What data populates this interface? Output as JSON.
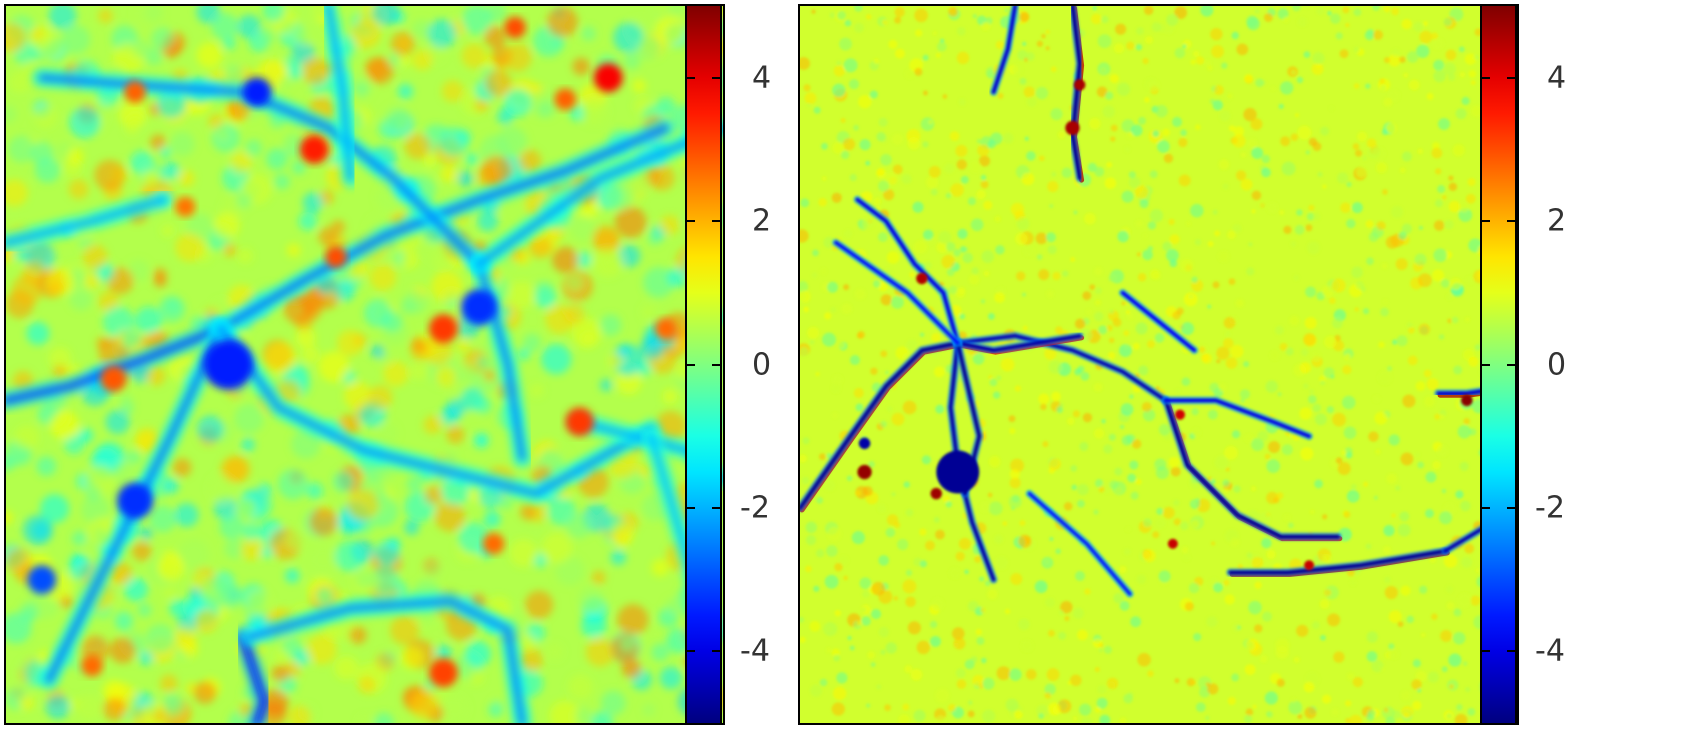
{
  "chart_data": [
    {
      "type": "heatmap",
      "title": "",
      "xlabel": "",
      "ylabel": "",
      "colorbar": {
        "range": [
          -5,
          5
        ],
        "ticks": [
          4,
          2,
          0,
          -2,
          -4
        ],
        "tick_labels": [
          "4",
          "2",
          "0",
          "-2",
          "-4"
        ],
        "colormap": "jet"
      },
      "texture": "smooth",
      "background_level": 0.5,
      "filaments": [
        {
          "id": "L1",
          "path": [
            [
              0.0,
              0.55
            ],
            [
              0.09,
              0.53
            ],
            [
              0.2,
              0.49
            ],
            [
              0.3,
              0.45
            ]
          ],
          "value": -3.0
        },
        {
          "id": "L2",
          "path": [
            [
              0.3,
              0.45
            ],
            [
              0.42,
              0.38
            ],
            [
              0.53,
              0.32
            ],
            [
              0.66,
              0.27
            ],
            [
              0.78,
              0.23
            ],
            [
              0.92,
              0.17
            ]
          ],
          "value": -2.6
        },
        {
          "id": "L3",
          "path": [
            [
              0.3,
              0.45
            ],
            [
              0.23,
              0.6
            ],
            [
              0.18,
              0.7
            ],
            [
              0.12,
              0.82
            ],
            [
              0.06,
              0.94
            ]
          ],
          "value": -2.5
        },
        {
          "id": "L4",
          "path": [
            [
              0.3,
              0.45
            ],
            [
              0.38,
              0.56
            ],
            [
              0.5,
              0.62
            ],
            [
              0.62,
              0.65
            ],
            [
              0.74,
              0.68
            ],
            [
              0.9,
              0.59
            ]
          ],
          "value": -2.3
        },
        {
          "id": "L5",
          "path": [
            [
              0.33,
              0.88
            ],
            [
              0.36,
              0.97
            ],
            [
              0.35,
              1.0
            ]
          ],
          "value": -3.6
        },
        {
          "id": "L6",
          "path": [
            [
              0.34,
              0.88
            ],
            [
              0.48,
              0.84
            ],
            [
              0.62,
              0.83
            ],
            [
              0.7,
              0.87
            ],
            [
              0.72,
              1.0
            ]
          ],
          "value": -2.4
        },
        {
          "id": "L7",
          "path": [
            [
              0.05,
              0.1
            ],
            [
              0.18,
              0.11
            ],
            [
              0.33,
              0.12
            ],
            [
              0.45,
              0.17
            ],
            [
              0.54,
              0.24
            ],
            [
              0.66,
              0.36
            ]
          ],
          "value": -2.5
        },
        {
          "id": "L8",
          "path": [
            [
              0.66,
              0.36
            ],
            [
              0.7,
              0.5
            ],
            [
              0.72,
              0.63
            ]
          ],
          "value": -2.4
        },
        {
          "id": "L9",
          "path": [
            [
              0.66,
              0.36
            ],
            [
              0.83,
              0.24
            ],
            [
              1.0,
              0.17
            ]
          ],
          "value": -2.2
        },
        {
          "id": "L10",
          "path": [
            [
              0.45,
              0.0
            ],
            [
              0.47,
              0.12
            ],
            [
              0.48,
              0.24
            ]
          ],
          "value": -2.0
        },
        {
          "id": "L11",
          "path": [
            [
              0.8,
              0.58
            ],
            [
              0.95,
              0.62
            ],
            [
              1.0,
              0.66
            ]
          ],
          "value": -2.0
        },
        {
          "id": "L12",
          "path": [
            [
              0.0,
              0.33
            ],
            [
              0.12,
              0.3
            ],
            [
              0.22,
              0.27
            ]
          ],
          "value": -2.0
        },
        {
          "id": "L13",
          "path": [
            [
              0.9,
              0.6
            ],
            [
              0.96,
              0.8
            ],
            [
              0.98,
              1.0
            ]
          ],
          "value": -1.8
        }
      ],
      "blobs": [
        {
          "xy": [
            0.43,
            0.2
          ],
          "r": 0.02,
          "value": 3.5
        },
        {
          "xy": [
            0.84,
            0.1
          ],
          "r": 0.02,
          "value": 3.8
        },
        {
          "xy": [
            0.61,
            0.45
          ],
          "r": 0.02,
          "value": 3.2
        },
        {
          "xy": [
            0.8,
            0.58
          ],
          "r": 0.02,
          "value": 3.2
        },
        {
          "xy": [
            0.61,
            0.93
          ],
          "r": 0.02,
          "value": 3.1
        },
        {
          "xy": [
            0.15,
            0.52
          ],
          "r": 0.018,
          "value": 2.9
        },
        {
          "xy": [
            0.46,
            0.35
          ],
          "r": 0.015,
          "value": 3.0
        },
        {
          "xy": [
            0.18,
            0.12
          ],
          "r": 0.015,
          "value": 2.8
        },
        {
          "xy": [
            0.71,
            0.03
          ],
          "r": 0.015,
          "value": 3.0
        },
        {
          "xy": [
            0.78,
            0.13
          ],
          "r": 0.015,
          "value": 2.8
        },
        {
          "xy": [
            0.12,
            0.92
          ],
          "r": 0.015,
          "value": 2.7
        },
        {
          "xy": [
            0.92,
            0.45
          ],
          "r": 0.015,
          "value": 2.7
        },
        {
          "xy": [
            0.25,
            0.28
          ],
          "r": 0.014,
          "value": 2.6
        },
        {
          "xy": [
            0.68,
            0.75
          ],
          "r": 0.015,
          "value": 2.7
        }
      ],
      "minima": [
        {
          "xy": [
            0.31,
            0.5
          ],
          "r": 0.035,
          "value": -3.5
        },
        {
          "xy": [
            0.35,
            0.12
          ],
          "r": 0.02,
          "value": -3.5
        },
        {
          "xy": [
            0.66,
            0.42
          ],
          "r": 0.025,
          "value": -3.3
        },
        {
          "xy": [
            0.18,
            0.69
          ],
          "r": 0.025,
          "value": -3.3
        },
        {
          "xy": [
            0.05,
            0.8
          ],
          "r": 0.02,
          "value": -3.0
        }
      ]
    },
    {
      "type": "heatmap",
      "title": "",
      "xlabel": "",
      "ylabel": "",
      "colorbar": {
        "range": [
          -5,
          5
        ],
        "ticks": [
          4,
          2,
          0,
          -2,
          -4
        ],
        "tick_labels": [
          "4",
          "2",
          "0",
          "-2",
          "-4"
        ],
        "colormap": "jet"
      },
      "texture": "sharp",
      "background_level": 0.8,
      "filaments": [
        {
          "id": "R1",
          "path": [
            [
              0.38,
              0.0
            ],
            [
              0.39,
              0.08
            ],
            [
              0.38,
              0.18
            ],
            [
              0.39,
              0.24
            ]
          ],
          "value": -4.8,
          "positive_edge": 4.5
        },
        {
          "id": "R2",
          "path": [
            [
              0.0,
              0.7
            ],
            [
              0.07,
              0.6
            ],
            [
              0.12,
              0.53
            ],
            [
              0.17,
              0.48
            ],
            [
              0.22,
              0.47
            ]
          ],
          "value": -4.8,
          "positive_edge": 4.2
        },
        {
          "id": "R3",
          "path": [
            [
              0.22,
              0.47
            ],
            [
              0.3,
              0.46
            ],
            [
              0.38,
              0.48
            ],
            [
              0.45,
              0.51
            ],
            [
              0.51,
              0.55
            ]
          ],
          "value": -4.5
        },
        {
          "id": "R4",
          "path": [
            [
              0.22,
              0.47
            ],
            [
              0.27,
              0.48
            ],
            [
              0.33,
              0.47
            ],
            [
              0.39,
              0.46
            ]
          ],
          "value": -4.6,
          "positive_edge": 4.0
        },
        {
          "id": "R5",
          "path": [
            [
              0.22,
              0.47
            ],
            [
              0.2,
              0.4
            ],
            [
              0.16,
              0.36
            ],
            [
              0.12,
              0.3
            ],
            [
              0.08,
              0.27
            ]
          ],
          "value": -4.0
        },
        {
          "id": "R6",
          "path": [
            [
              0.22,
              0.47
            ],
            [
              0.21,
              0.56
            ],
            [
              0.22,
              0.64
            ],
            [
              0.24,
              0.72
            ],
            [
              0.27,
              0.8
            ]
          ],
          "value": -4.6
        },
        {
          "id": "R7",
          "path": [
            [
              0.51,
              0.55
            ],
            [
              0.54,
              0.64
            ],
            [
              0.61,
              0.71
            ],
            [
              0.67,
              0.74
            ],
            [
              0.75,
              0.74
            ]
          ],
          "value": -4.8,
          "positive_edge": 4.0
        },
        {
          "id": "R8",
          "path": [
            [
              0.51,
              0.55
            ],
            [
              0.58,
              0.55
            ],
            [
              0.66,
              0.58
            ],
            [
              0.71,
              0.6
            ]
          ],
          "value": -4.0
        },
        {
          "id": "R9",
          "path": [
            [
              0.6,
              0.79
            ],
            [
              0.68,
              0.79
            ],
            [
              0.78,
              0.78
            ],
            [
              0.9,
              0.76
            ]
          ],
          "value": -4.8,
          "positive_edge": 4.5
        },
        {
          "id": "R10",
          "path": [
            [
              0.89,
              0.54
            ],
            [
              0.93,
              0.54
            ],
            [
              1.0,
              0.53
            ]
          ],
          "value": -4.2,
          "positive_edge": 4.6
        },
        {
          "id": "R11",
          "path": [
            [
              0.9,
              0.76
            ],
            [
              0.95,
              0.73
            ],
            [
              1.0,
              0.7
            ]
          ],
          "value": -4.5
        },
        {
          "id": "R12",
          "path": [
            [
              0.3,
              0.0
            ],
            [
              0.29,
              0.06
            ],
            [
              0.27,
              0.12
            ]
          ],
          "value": -4.2
        },
        {
          "id": "R13",
          "path": [
            [
              0.22,
              0.47
            ],
            [
              0.25,
              0.6
            ],
            [
              0.23,
              0.68
            ]
          ],
          "value": -4.8
        },
        {
          "id": "R14",
          "path": [
            [
              0.05,
              0.33
            ],
            [
              0.15,
              0.4
            ],
            [
              0.22,
              0.47
            ]
          ],
          "value": -3.6
        },
        {
          "id": "R15",
          "path": [
            [
              0.45,
              0.4
            ],
            [
              0.5,
              0.44
            ],
            [
              0.55,
              0.48
            ]
          ],
          "value": -3.8
        },
        {
          "id": "R16",
          "path": [
            [
              0.32,
              0.68
            ],
            [
              0.4,
              0.75
            ],
            [
              0.46,
              0.82
            ]
          ],
          "value": -3.5
        }
      ],
      "blobs": [
        {
          "xy": [
            0.38,
            0.17
          ],
          "r": 0.01,
          "value": 4.6
        },
        {
          "xy": [
            0.39,
            0.11
          ],
          "r": 0.008,
          "value": 4.6
        },
        {
          "xy": [
            0.17,
            0.38
          ],
          "r": 0.008,
          "value": 4.5
        },
        {
          "xy": [
            0.09,
            0.65
          ],
          "r": 0.01,
          "value": 4.8
        },
        {
          "xy": [
            0.19,
            0.68
          ],
          "r": 0.008,
          "value": 4.7
        },
        {
          "xy": [
            0.93,
            0.55
          ],
          "r": 0.008,
          "value": 4.9
        },
        {
          "xy": [
            0.71,
            0.78
          ],
          "r": 0.007,
          "value": 4.3
        },
        {
          "xy": [
            0.52,
            0.75
          ],
          "r": 0.007,
          "value": 4.3
        },
        {
          "xy": [
            0.53,
            0.57
          ],
          "r": 0.007,
          "value": 4.2
        }
      ],
      "minima": [
        {
          "xy": [
            0.22,
            0.65
          ],
          "r": 0.03,
          "value": -4.8
        },
        {
          "xy": [
            0.09,
            0.61
          ],
          "r": 0.008,
          "value": -4.6
        }
      ]
    }
  ]
}
